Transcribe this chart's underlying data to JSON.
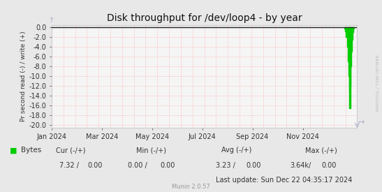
{
  "title": "Disk throughput for /dev/loop4 - by year",
  "ylabel": "Pr second read (-) / write (+)",
  "ylim": [
    -20.5,
    0.5
  ],
  "yticks": [
    0.0,
    -2.0,
    -4.0,
    -6.0,
    -8.0,
    -10.0,
    -12.0,
    -14.0,
    -16.0,
    -18.0,
    -20.0
  ],
  "xtick_labels": [
    "Jan 2024",
    "Mar 2024",
    "May 2024",
    "Jul 2024",
    "Sep 2024",
    "Nov 2024"
  ],
  "xtick_positions": [
    0.0,
    0.1644,
    0.3288,
    0.4932,
    0.6575,
    0.8219
  ],
  "bg_color": "#e8e8e8",
  "plot_bg_color": "#f5f5f5",
  "grid_color": "#ffaaaa",
  "border_color": "#cccccc",
  "watermark": "RRDTOOL / TOBI OETIKER",
  "munin_label": "Munin 2.0.57",
  "legend_label": "Bytes",
  "legend_color": "#00cc00",
  "top_line_color": "#222222",
  "spike_color": "#00cc00",
  "axis_line_color": "#aaaacc",
  "text_color": "#333333",
  "stats_cur_label": "Cur (-/+)",
  "stats_min_label": "Min (-/+)",
  "stats_avg_label": "Avg (-/+)",
  "stats_max_label": "Max (-/+)",
  "stat_cur_read": "7.32 /",
  "stat_cur_write": "0.00",
  "stat_min_read": "0.00 /",
  "stat_min_write": "0.00",
  "stat_avg_read": "3.23 /",
  "stat_avg_write": "0.00",
  "stat_max_read": "3.64k/",
  "stat_max_write": "0.00",
  "last_update": "Last update: Sun Dec 22 04:35:17 2024"
}
